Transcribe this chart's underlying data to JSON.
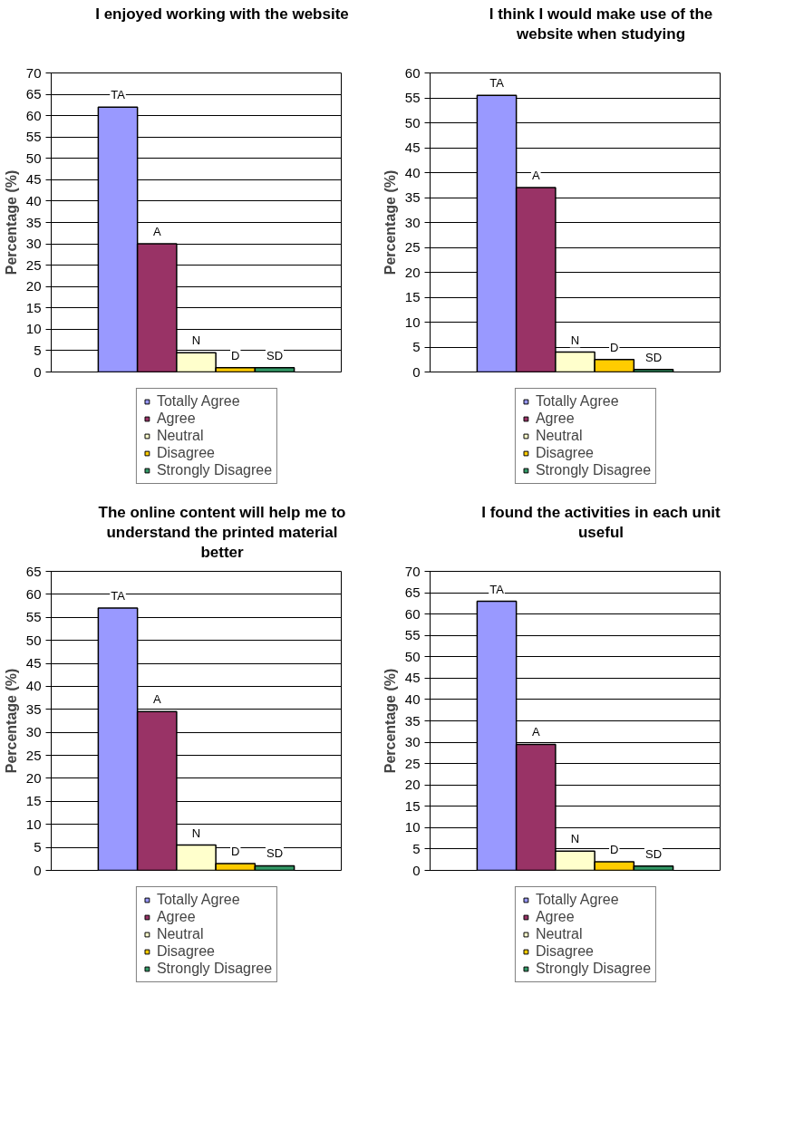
{
  "chart_data": [
    {
      "type": "bar",
      "title": "I enjoyed working with the website",
      "ylabel": "Percentage (%)",
      "categories": [
        null
      ],
      "ylim": [
        0,
        70
      ],
      "yticks": [
        0,
        5,
        10,
        15,
        20,
        25,
        30,
        35,
        40,
        45,
        50,
        55,
        60,
        65,
        70
      ],
      "grid": "y",
      "legend": "bottom",
      "tick_labels": "y",
      "series": [
        {
          "name": "Totally Agree",
          "color": "#9999ff",
          "values": [
            62
          ],
          "value_labels": [
            "TA"
          ]
        },
        {
          "name": "Agree",
          "color": "#993366",
          "values": [
            30
          ],
          "value_labels": [
            "A"
          ]
        },
        {
          "name": "Neutral",
          "color": "#ffffcc",
          "values": [
            4.5
          ],
          "value_labels": [
            "N"
          ]
        },
        {
          "name": "Disagree",
          "color": "#ffcc00",
          "values": [
            1
          ],
          "value_labels": [
            "D"
          ]
        },
        {
          "name": "Strongly Disagree",
          "color": "#339966",
          "values": [
            1
          ],
          "value_labels": [
            "SD"
          ]
        }
      ]
    },
    {
      "type": "bar",
      "title": "I think I would make use of the website when studying",
      "ylabel": "Percentage (%)",
      "categories": [
        null
      ],
      "ylim": [
        0,
        60
      ],
      "yticks": [
        0,
        5,
        10,
        15,
        20,
        25,
        30,
        35,
        40,
        45,
        50,
        55,
        60
      ],
      "grid": "y",
      "legend": "bottom",
      "tick_labels": "y",
      "series": [
        {
          "name": "Totally Agree",
          "color": "#9999ff",
          "values": [
            55.5
          ],
          "value_labels": [
            "TA"
          ]
        },
        {
          "name": "Agree",
          "color": "#993366",
          "values": [
            37
          ],
          "value_labels": [
            "A"
          ]
        },
        {
          "name": "Neutral",
          "color": "#ffffcc",
          "values": [
            4
          ],
          "value_labels": [
            "N"
          ]
        },
        {
          "name": "Disagree",
          "color": "#ffcc00",
          "values": [
            2.5
          ],
          "value_labels": [
            "D"
          ]
        },
        {
          "name": "Strongly Disagree",
          "color": "#339966",
          "values": [
            0.5
          ],
          "value_labels": [
            "SD"
          ]
        }
      ]
    },
    {
      "type": "bar",
      "title": "The online content will help me to understand the printed material better",
      "ylabel": "Percentage (%)",
      "categories": [
        null
      ],
      "ylim": [
        0,
        65
      ],
      "yticks": [
        0,
        5,
        10,
        15,
        20,
        25,
        30,
        35,
        40,
        45,
        50,
        55,
        60,
        65
      ],
      "grid": "y",
      "legend": "bottom",
      "tick_labels": "y",
      "series": [
        {
          "name": "Totally Agree",
          "color": "#9999ff",
          "values": [
            57
          ],
          "value_labels": [
            "TA"
          ]
        },
        {
          "name": "Agree",
          "color": "#993366",
          "values": [
            34.5
          ],
          "value_labels": [
            "A"
          ]
        },
        {
          "name": "Neutral",
          "color": "#ffffcc",
          "values": [
            5.5
          ],
          "value_labels": [
            "N"
          ]
        },
        {
          "name": "Disagree",
          "color": "#ffcc00",
          "values": [
            1.5
          ],
          "value_labels": [
            "D"
          ]
        },
        {
          "name": "Strongly Disagree",
          "color": "#339966",
          "values": [
            1
          ],
          "value_labels": [
            "SD"
          ]
        }
      ]
    },
    {
      "type": "bar",
      "title": "I found the activities in each unit useful",
      "ylabel": "Percentage (%)",
      "categories": [
        null
      ],
      "ylim": [
        0,
        70
      ],
      "yticks": [
        0,
        5,
        10,
        15,
        20,
        25,
        30,
        35,
        40,
        45,
        50,
        55,
        60,
        65,
        70
      ],
      "grid": "y",
      "legend": "bottom",
      "tick_labels": "y",
      "series": [
        {
          "name": "Totally Agree",
          "color": "#9999ff",
          "values": [
            63
          ],
          "value_labels": [
            "TA"
          ]
        },
        {
          "name": "Agree",
          "color": "#993366",
          "values": [
            29.5
          ],
          "value_labels": [
            "A"
          ]
        },
        {
          "name": "Neutral",
          "color": "#ffffcc",
          "values": [
            4.5
          ],
          "value_labels": [
            "N"
          ]
        },
        {
          "name": "Disagree",
          "color": "#ffcc00",
          "values": [
            2
          ],
          "value_labels": [
            "D"
          ]
        },
        {
          "name": "Strongly Disagree",
          "color": "#339966",
          "values": [
            1
          ],
          "value_labels": [
            "SD"
          ]
        }
      ]
    }
  ]
}
